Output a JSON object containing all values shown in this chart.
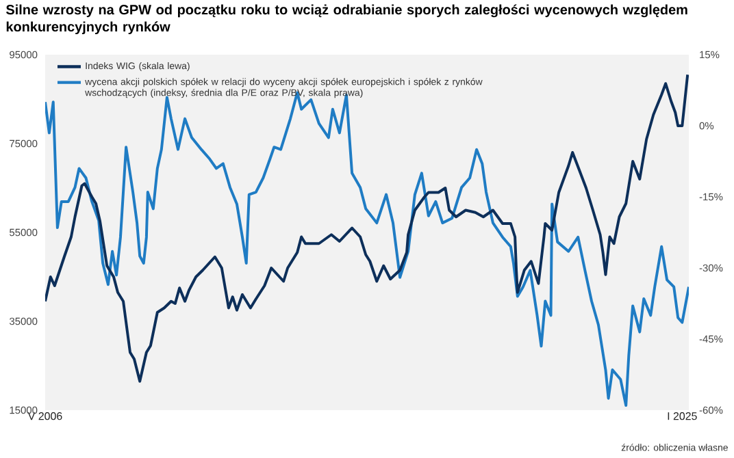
{
  "chart_data": {
    "type": "line",
    "title": "**Silne wzrosty na GPW od początku roku to wciąż odrabianie sporych zaległości wycenowych względem konkurencyjnych rynków**",
    "annotations": [
      "źródło: obliczenia własne"
    ],
    "xlim": [
      "2006-05-01",
      "2025-03-13"
    ],
    "xticks": [
      {
        "value": "2006-05",
        "label": "V 2006"
      },
      {
        "value": "2025-01",
        "label": "I 2025"
      }
    ],
    "ylim": [
      15000,
      95000
    ],
    "yticks": [
      15000,
      35000,
      55000,
      75000,
      95000
    ],
    "y2lim": [
      -60,
      15
    ],
    "y2ticks": [
      {
        "value": -60,
        "label": "-60%"
      },
      {
        "value": -45,
        "label": "-45%"
      },
      {
        "value": -30,
        "label": "-30%"
      },
      {
        "value": -15,
        "label": "-15%"
      },
      {
        "value": 0,
        "label": "0%"
      },
      {
        "value": 15,
        "label": "15%"
      }
    ],
    "legend": "top left",
    "series": [
      {
        "name": "Indeks WIG (skala lewa)",
        "color": "#0d2f5a",
        "x": [
          "2006-05-01",
          "2006-06-27",
          "2006-08-10",
          "2006-11-21",
          "2007-02-03",
          "2007-03-16",
          "2007-05-28",
          "2007-06-27",
          "2007-09-13",
          "2007-10-26",
          "2007-12-09",
          "2008-02-21",
          "2008-05-03",
          "2008-06-16",
          "2008-08-14",
          "2008-10-26",
          "2008-12-09",
          "2009-02-07",
          "2009-04-19",
          "2009-06-02",
          "2009-08-14",
          "2009-10-26",
          "2010-01-08",
          "2010-02-21",
          "2010-04-08",
          "2010-06-05",
          "2010-07-19",
          "2010-10-01",
          "2010-12-13",
          "2011-04-22",
          "2011-07-04",
          "2011-09-16",
          "2011-10-29",
          "2011-12-13",
          "2012-02-10",
          "2012-05-07",
          "2012-07-04",
          "2012-10-04",
          "2012-12-16",
          "2013-04-26",
          "2013-06-09",
          "2013-09-20",
          "2013-11-03",
          "2013-12-16",
          "2014-05-10",
          "2014-09-20",
          "2014-12-16",
          "2015-04-29",
          "2015-07-26",
          "2015-09-23",
          "2015-11-07",
          "2016-01-19",
          "2016-04-01",
          "2016-06-13",
          "2016-09-23",
          "2016-12-05",
          "2016-12-20",
          "2017-03-02",
          "2017-06-13",
          "2017-07-26",
          "2017-11-10",
          "2018-01-22",
          "2018-03-05",
          "2018-05-17",
          "2018-08-28",
          "2018-12-09",
          "2019-03-05",
          "2019-06-16",
          "2019-09-27",
          "2019-12-23",
          "2020-02-07",
          "2020-02-21",
          "2020-03-05",
          "2020-05-17",
          "2020-07-29",
          "2020-10-15",
          "2020-12-13",
          "2020-12-27",
          "2021-03-09",
          "2021-05-21",
          "2021-09-02",
          "2021-10-15",
          "2021-12-27",
          "2022-03-09",
          "2022-05-21",
          "2022-08-07",
          "2022-09-05",
          "2022-10-04",
          "2022-11-17",
          "2023-01-01",
          "2023-02-28",
          "2023-05-10",
          "2023-07-22",
          "2023-10-04",
          "2023-12-16",
          "2024-02-28",
          "2024-05-25",
          "2024-07-08",
          "2024-09-05",
          "2024-10-19",
          "2024-11-17",
          "2025-01-01",
          "2025-02-28"
        ],
        "values": [
          39500,
          45000,
          43000,
          49500,
          54000,
          58500,
          65500,
          66000,
          63000,
          61500,
          57500,
          47500,
          45000,
          41500,
          39500,
          28000,
          26500,
          21500,
          28000,
          29500,
          37000,
          38000,
          39500,
          39000,
          42500,
          39500,
          42000,
          45000,
          46500,
          49500,
          47000,
          38000,
          40500,
          37500,
          41000,
          38000,
          40000,
          43000,
          47000,
          44000,
          47000,
          50500,
          54000,
          52500,
          52500,
          54500,
          53000,
          56000,
          54000,
          50000,
          48500,
          44000,
          47500,
          44500,
          46500,
          50500,
          54500,
          60000,
          63000,
          64000,
          64000,
          65000,
          60000,
          58500,
          60000,
          59500,
          58500,
          60000,
          57000,
          57000,
          54000,
          46500,
          41500,
          46500,
          48500,
          43500,
          54000,
          57000,
          55500,
          64000,
          70000,
          73000,
          69000,
          65000,
          60000,
          54500,
          50500,
          45500,
          54000,
          52500,
          58500,
          61500,
          71000,
          67000,
          76000,
          81500,
          86000,
          88500,
          84500,
          82000,
          79000,
          79000,
          90500
        ]
      },
      {
        "name": "wycena akcji polskich spółek w relacji do wyceny  akcji spółek europejskich i spółek z rynków wschodzących (indeksy, średnia dla P/E oraz P/BV, skala prawa)",
        "color": "#1f7cc4",
        "axis": "y2",
        "x": [
          "2006-05-01",
          "2006-06-13",
          "2006-07-26",
          "2006-09-09",
          "2006-10-22",
          "2007-01-04",
          "2007-03-16",
          "2007-04-29",
          "2007-07-11",
          "2007-09-13",
          "2007-11-25",
          "2008-01-08",
          "2008-03-05",
          "2008-04-19",
          "2008-06-02",
          "2008-07-15",
          "2008-09-13",
          "2008-11-25",
          "2009-01-08",
          "2009-02-07",
          "2009-03-20",
          "2009-04-19",
          "2009-05-03",
          "2009-07-01",
          "2009-08-14",
          "2009-09-27",
          "2009-11-25",
          "2010-01-08",
          "2010-03-23",
          "2010-06-05",
          "2010-08-17",
          "2010-11-28",
          "2011-02-25",
          "2011-05-07",
          "2011-07-19",
          "2011-10-01",
          "2011-12-13",
          "2012-02-10",
          "2012-03-23",
          "2012-04-22",
          "2012-07-04",
          "2012-09-20",
          "2012-12-02",
          "2013-01-15",
          "2013-03-27",
          "2013-07-08",
          "2013-09-20",
          "2013-11-03",
          "2014-02-14",
          "2014-05-10",
          "2014-08-21",
          "2014-10-04",
          "2014-12-16",
          "2015-02-28",
          "2015-04-29",
          "2015-07-26",
          "2015-09-23",
          "2016-01-19",
          "2016-04-29",
          "2016-07-11",
          "2016-09-23",
          "2016-12-20",
          "2017-03-02",
          "2017-05-14",
          "2017-07-26",
          "2017-10-11",
          "2017-12-23",
          "2018-04-04",
          "2018-07-15",
          "2018-10-11",
          "2018-12-23",
          "2019-02-21",
          "2019-04-04",
          "2019-06-16",
          "2019-09-27",
          "2019-12-23",
          "2020-01-22",
          "2020-03-05",
          "2020-05-03",
          "2020-07-19",
          "2020-10-01",
          "2020-11-14",
          "2020-12-27",
          "2021-02-25",
          "2021-03-09",
          "2021-05-07",
          "2021-09-02",
          "2021-12-13",
          "2022-02-25",
          "2022-05-07",
          "2022-07-19",
          "2022-10-04",
          "2022-11-03",
          "2022-12-16",
          "2023-03-13",
          "2023-05-10",
          "2023-06-09",
          "2023-07-22",
          "2023-10-04",
          "2023-11-17",
          "2024-01-29",
          "2024-03-13",
          "2024-05-25",
          "2024-07-22",
          "2024-10-04",
          "2024-11-17",
          "2025-01-01",
          "2025-03-13"
        ],
        "values": [
          5,
          -1.5,
          5,
          -21.5,
          -16,
          -16,
          -13,
          -9,
          -11,
          -16,
          -20,
          -29,
          -33.5,
          -26.5,
          -31.5,
          -23.5,
          -4.5,
          -14,
          -20.5,
          -27.5,
          -29,
          -23.5,
          -14,
          -17.5,
          -9,
          -5,
          6,
          1.5,
          -5,
          1.5,
          -2.5,
          -5,
          -7,
          -9,
          -8,
          -13,
          -16.5,
          -23.5,
          -29,
          -14.5,
          -14,
          -11,
          -7,
          -4.5,
          -5,
          1.5,
          7,
          3.5,
          5.5,
          0.5,
          -2.5,
          3.5,
          -1.5,
          6.5,
          -10,
          -13,
          -17.5,
          -20.5,
          -14.5,
          -20.5,
          -32,
          -26.5,
          -14.5,
          -10,
          -19,
          -16,
          -20.5,
          -19.5,
          -13,
          -11,
          -5,
          -8,
          -14,
          -20.5,
          -23.5,
          -25.5,
          -29,
          -36,
          -34,
          -30.5,
          -40,
          -46.5,
          -37,
          -40,
          -16.5,
          -24.5,
          -26.5,
          -23.5,
          -30.5,
          -37,
          -42,
          -51.5,
          -57.5,
          -51.5,
          -53.5,
          -59,
          -48.5,
          -38,
          -43.5,
          -36.5,
          -40,
          -34,
          -25.5,
          -32.5,
          -34,
          -40.5,
          -41.5,
          -34
        ]
      }
    ]
  }
}
